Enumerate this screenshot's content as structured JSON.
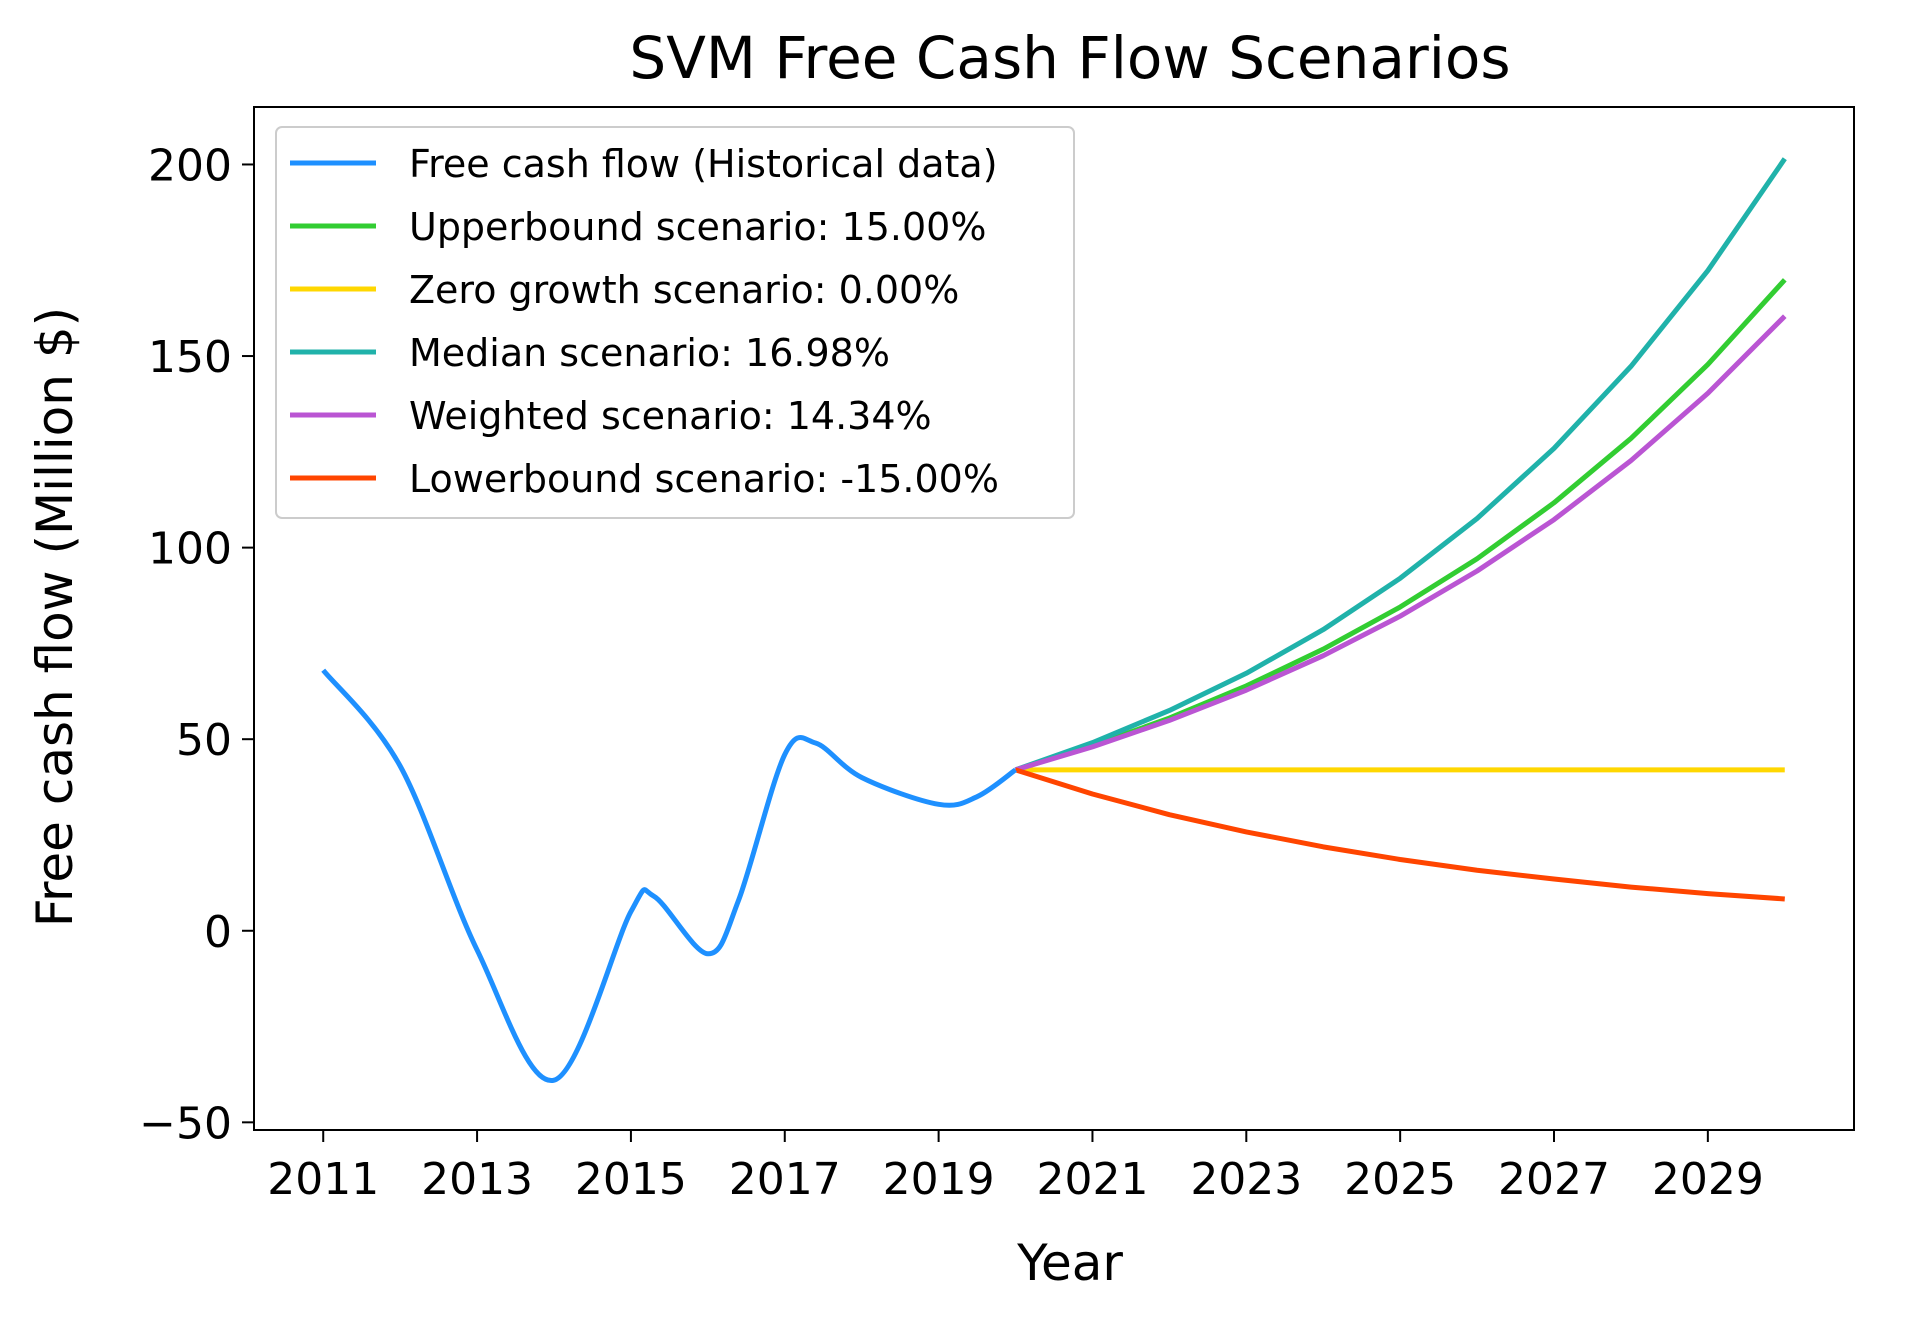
{
  "chart_data": {
    "type": "line",
    "title": "SVM Free Cash Flow Scenarios",
    "xlabel": "Year",
    "ylabel": "Free cash flow (Million $)",
    "xlim": [
      2010.1,
      2030.9
    ],
    "ylim": [
      -52,
      215
    ],
    "x_ticks": [
      2011,
      2013,
      2015,
      2017,
      2019,
      2021,
      2023,
      2025,
      2027,
      2029
    ],
    "y_ticks": [
      -50,
      0,
      50,
      100,
      150,
      200
    ],
    "x_tick_labels": [
      "2011",
      "2013",
      "2015",
      "2017",
      "2019",
      "2021",
      "2023",
      "2025",
      "2027",
      "2029"
    ],
    "y_tick_labels": [
      "−50",
      "0",
      "50",
      "100",
      "150",
      "200"
    ],
    "grid": false,
    "legend_position": "top-left",
    "series": [
      {
        "name": "Free cash flow (Historical data)",
        "color": "#1E90FF",
        "smooth": true,
        "points": [
          [
            2011,
            68
          ],
          [
            2012,
            43
          ],
          [
            2013,
            -5
          ],
          [
            2014,
            -39
          ],
          [
            2015,
            5
          ],
          [
            2015.3,
            9
          ],
          [
            2016,
            -6
          ],
          [
            2016.4,
            8
          ],
          [
            2017,
            46
          ],
          [
            2017.4,
            49
          ],
          [
            2018,
            40
          ],
          [
            2019,
            33
          ],
          [
            2019.5,
            35
          ],
          [
            2020,
            42
          ]
        ]
      },
      {
        "name": "Upperbound scenario: 15.00%",
        "color": "#32CD32",
        "smooth": false,
        "points": [
          [
            2020,
            42
          ],
          [
            2021,
            48.3
          ],
          [
            2022,
            55.5
          ],
          [
            2023,
            63.9
          ],
          [
            2024,
            73.5
          ],
          [
            2025,
            84.5
          ],
          [
            2026,
            97.1
          ],
          [
            2027,
            111.7
          ],
          [
            2028,
            128.5
          ],
          [
            2029,
            147.8
          ],
          [
            2030,
            169.9
          ]
        ]
      },
      {
        "name": "Zero growth scenario: 0.00%",
        "color": "#FFD700",
        "smooth": false,
        "points": [
          [
            2020,
            42
          ],
          [
            2021,
            42
          ],
          [
            2022,
            42
          ],
          [
            2023,
            42
          ],
          [
            2024,
            42
          ],
          [
            2025,
            42
          ],
          [
            2026,
            42
          ],
          [
            2027,
            42
          ],
          [
            2028,
            42
          ],
          [
            2029,
            42
          ],
          [
            2030,
            42
          ]
        ]
      },
      {
        "name": "Median scenario: 16.98%",
        "color": "#20B2AA",
        "smooth": false,
        "points": [
          [
            2020,
            42
          ],
          [
            2021,
            49.1
          ],
          [
            2022,
            57.5
          ],
          [
            2023,
            67.2
          ],
          [
            2024,
            78.6
          ],
          [
            2025,
            92.0
          ],
          [
            2026,
            107.6
          ],
          [
            2027,
            125.9
          ],
          [
            2028,
            147.3
          ],
          [
            2029,
            172.3
          ],
          [
            2030,
            201.5
          ]
        ]
      },
      {
        "name": "Weighted scenario: 14.34%",
        "color": "#BA55D3",
        "smooth": false,
        "points": [
          [
            2020,
            42
          ],
          [
            2021,
            48.0
          ],
          [
            2022,
            54.9
          ],
          [
            2023,
            62.8
          ],
          [
            2024,
            71.8
          ],
          [
            2025,
            82.1
          ],
          [
            2026,
            93.9
          ],
          [
            2027,
            107.3
          ],
          [
            2028,
            122.7
          ],
          [
            2029,
            140.3
          ],
          [
            2030,
            160.4
          ]
        ]
      },
      {
        "name": "Lowerbound scenario: -15.00%",
        "color": "#FF4500",
        "smooth": false,
        "points": [
          [
            2020,
            42
          ],
          [
            2021,
            35.7
          ],
          [
            2022,
            30.3
          ],
          [
            2023,
            25.8
          ],
          [
            2024,
            21.9
          ],
          [
            2025,
            18.6
          ],
          [
            2026,
            15.8
          ],
          [
            2027,
            13.5
          ],
          [
            2028,
            11.4
          ],
          [
            2029,
            9.7
          ],
          [
            2030,
            8.3
          ]
        ]
      }
    ]
  }
}
